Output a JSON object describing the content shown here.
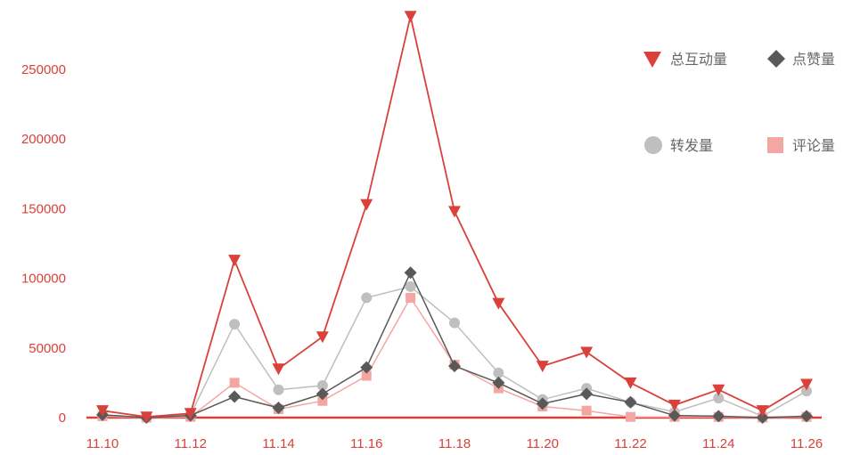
{
  "chart_data": {
    "type": "line",
    "title": "",
    "xlabel": "",
    "ylabel": "",
    "x": [
      "11.10",
      "11.11",
      "11.12",
      "11.13",
      "11.14",
      "11.15",
      "11.16",
      "11.17",
      "11.18",
      "11.19",
      "11.20",
      "11.21",
      "11.22",
      "11.23",
      "11.24",
      "11.25",
      "11.26"
    ],
    "x_tick_labels": [
      "11.10",
      "11.12",
      "11.14",
      "11.16",
      "11.18",
      "11.20",
      "11.22",
      "11.24",
      "11.26"
    ],
    "y_tick_labels": [
      "0",
      "50000",
      "100000",
      "150000",
      "200000",
      "250000"
    ],
    "ylim": [
      0,
      290000
    ],
    "grid": false,
    "legend_position": "top-right",
    "series": [
      {
        "name": "总互动量",
        "marker": "triangle-down",
        "color": "#d9413a",
        "values": [
          5000,
          500,
          3000,
          113000,
          35000,
          58000,
          153000,
          288000,
          148000,
          82000,
          37000,
          47000,
          25000,
          9000,
          20000,
          5000,
          24000
        ]
      },
      {
        "name": "点赞量",
        "marker": "diamond",
        "color": "#595959",
        "values": [
          2000,
          0,
          1500,
          15000,
          7000,
          17000,
          36000,
          104000,
          37000,
          25000,
          10000,
          17000,
          11000,
          1500,
          1000,
          0,
          1000
        ]
      },
      {
        "name": "转发量",
        "marker": "circle",
        "color": "#bfbfbf",
        "values": [
          2000,
          0,
          2000,
          67000,
          20000,
          23000,
          86000,
          94000,
          68000,
          32000,
          13000,
          21000,
          11000,
          4000,
          14000,
          1000,
          19000
        ]
      },
      {
        "name": "评论量",
        "marker": "square",
        "color": "#f4a6a3",
        "values": [
          1000,
          0,
          500,
          25000,
          6000,
          12000,
          30000,
          86000,
          38000,
          21000,
          8000,
          5000,
          500,
          500,
          500,
          0,
          500
        ]
      }
    ]
  }
}
